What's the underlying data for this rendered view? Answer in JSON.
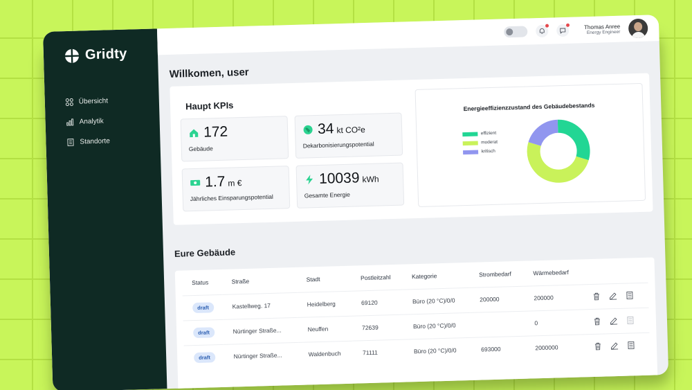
{
  "app": {
    "name": "Gridty"
  },
  "sidebar": {
    "items": [
      {
        "label": "Übersicht",
        "icon": "grid-icon"
      },
      {
        "label": "Analytik",
        "icon": "bar-chart-icon"
      },
      {
        "label": "Standorte",
        "icon": "building-icon"
      }
    ]
  },
  "topbar": {
    "user_name": "Thomas Anree",
    "user_role": "Energy Engineer"
  },
  "welcome": "Willkomen, user",
  "kpis": {
    "title": "Haupt KPIs",
    "cards": [
      {
        "value": "172",
        "unit": "",
        "label": "Gebäude",
        "icon": "house-icon",
        "color": "#2bd391"
      },
      {
        "value": "34",
        "unit": "kt CO²e",
        "label": "Dekarbonisierungspotential",
        "icon": "globe-icon",
        "color": "#2bd391"
      },
      {
        "value": "1.7",
        "unit": "m €",
        "label": "Jährliches Einsparungspotential",
        "icon": "money-icon",
        "color": "#2bd391"
      },
      {
        "value": "10039",
        "unit": "kWh",
        "label": "Gesamte Energie",
        "icon": "lightning-icon",
        "color": "#2bd391"
      }
    ]
  },
  "chart": {
    "title": "Energieeffizienzzustand des Gebäudebestands",
    "legend": [
      {
        "label": "effizient",
        "color": "#22d694"
      },
      {
        "label": "moderat",
        "color": "#c9f25a"
      },
      {
        "label": "kritisch",
        "color": "#9196ef"
      }
    ]
  },
  "chart_data": {
    "type": "pie",
    "title": "Energieeffizienzzustand des Gebäudebestands",
    "categories": [
      "effizient",
      "moderat",
      "kritisch"
    ],
    "values": [
      30,
      50,
      20
    ],
    "legend": "left"
  },
  "buildings": {
    "title": "Eure Gebäude",
    "columns": [
      "Status",
      "Straße",
      "Stadt",
      "Postleitzahl",
      "Kategorie",
      "Strombedarf",
      "Wärmebedarf"
    ],
    "rows": [
      {
        "status": "draft",
        "street": "Kastellweg. 17",
        "city": "Heidelberg",
        "zip": "69120",
        "category": "Büro (20 °C)/0/0",
        "power": "200000",
        "heat": "200000"
      },
      {
        "status": "draft",
        "street": "Nürtinger Straße...",
        "city": "Neuffen",
        "zip": "72639",
        "category": "Büro (20 °C)/0/0",
        "power": "",
        "heat": "0"
      },
      {
        "status": "draft",
        "street": "Nürtinger Straße...",
        "city": "Waldenbuch",
        "zip": "71111",
        "category": "Büro (20 °C)/0/0",
        "power": "693000",
        "heat": "2000000"
      }
    ]
  }
}
